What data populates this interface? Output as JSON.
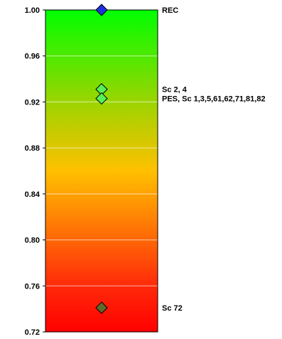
{
  "chart_data": {
    "type": "scatter",
    "title": "",
    "xlabel": "",
    "ylabel": "",
    "ylim": [
      0.72,
      1.0
    ],
    "yticks": [
      "0.72",
      "0.76",
      "0.80",
      "0.84",
      "0.88",
      "0.92",
      "0.96",
      "1.00"
    ],
    "grid": true,
    "background_gradient": {
      "direction": "vertical",
      "stops": [
        {
          "value": 1.0,
          "color": "#00ff00"
        },
        {
          "value": 0.92,
          "color": "#9cd400"
        },
        {
          "value": 0.86,
          "color": "#ffc000"
        },
        {
          "value": 0.76,
          "color": "#ff2a0a"
        },
        {
          "value": 0.72,
          "color": "#ff0000"
        }
      ]
    },
    "points": [
      {
        "y": 1.0,
        "label": "REC",
        "marker": "diamond",
        "color": "#1f2fe0"
      },
      {
        "y": 0.931,
        "label": "Sc 2, 4",
        "marker": "diamond",
        "color": "#56f056"
      },
      {
        "y": 0.923,
        "label": "PES, Sc 1,3,5,61,62,71,81,82",
        "marker": "diamond",
        "color": "#56f056"
      },
      {
        "y": 0.741,
        "label": "Sc 72",
        "marker": "diamond",
        "color": "#5f6b2a"
      }
    ]
  }
}
